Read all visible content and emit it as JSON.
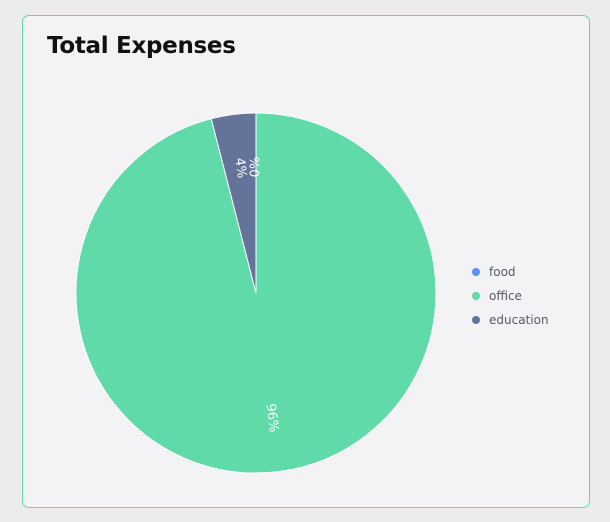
{
  "card": {
    "title": "Total Expenses"
  },
  "chart_data": {
    "type": "pie",
    "categories": [
      "food",
      "office",
      "education"
    ],
    "values": [
      0,
      96,
      4
    ],
    "labels": [
      "0%",
      "96%",
      "4%"
    ],
    "colors": [
      "#5b8ff9",
      "#5fdaa8",
      "#63739a"
    ],
    "legend_position": "right",
    "start_angle": "top",
    "direction": "clockwise"
  }
}
